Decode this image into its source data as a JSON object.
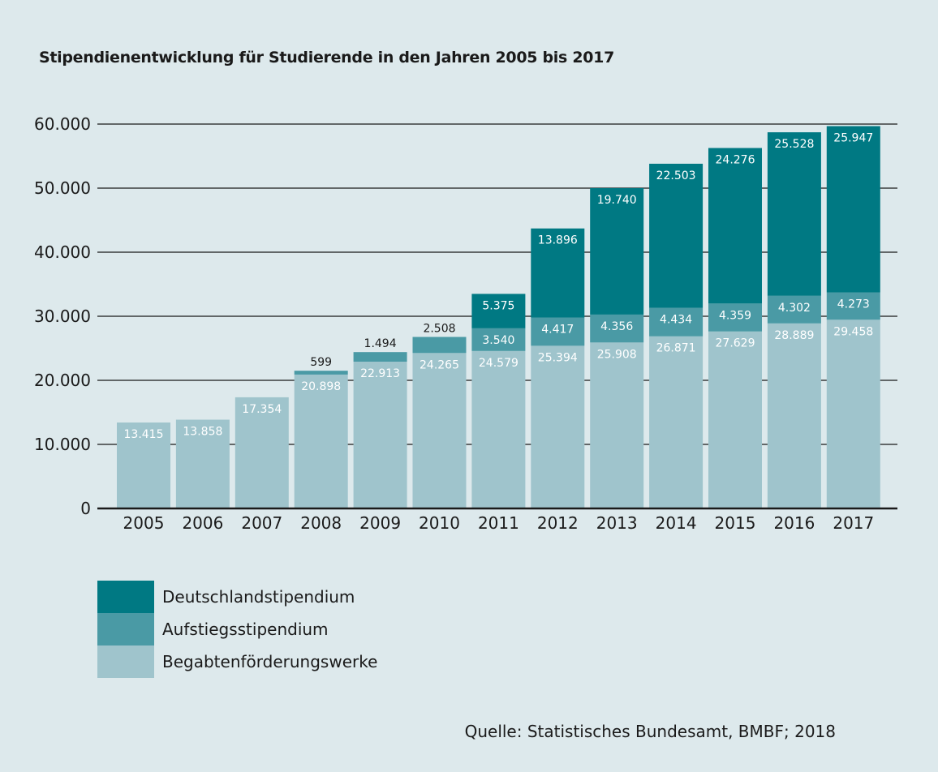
{
  "chart_data": {
    "type": "bar",
    "stacked": true,
    "title": "Stipendienentwicklung für Studierende in den Jahren 2005 bis 2017",
    "xlabel": "",
    "ylabel": "",
    "ylim": [
      0,
      60000
    ],
    "yticks": [
      0,
      10000,
      20000,
      30000,
      40000,
      50000,
      60000
    ],
    "ytick_labels": [
      "0",
      "10.000",
      "20.000",
      "30.000",
      "40.000",
      "50.000",
      "60.000"
    ],
    "grid": "horizontal",
    "legend_position": "bottom-left",
    "categories": [
      "2005",
      "2006",
      "2007",
      "2008",
      "2009",
      "2010",
      "2011",
      "2012",
      "2013",
      "2014",
      "2015",
      "2016",
      "2017"
    ],
    "series": [
      {
        "name": "Begabtenförderungswerke",
        "color": "#9fc4cc",
        "values": [
          13415,
          13858,
          17354,
          20898,
          22913,
          24265,
          24579,
          25394,
          25908,
          26871,
          27629,
          28889,
          29458
        ],
        "labels": [
          "13.415",
          "13.858",
          "17.354",
          "20.898",
          "22.913",
          "24.265",
          "24.579",
          "25.394",
          "25.908",
          "26.871",
          "27.629",
          "28.889",
          "29.458"
        ]
      },
      {
        "name": "Aufstiegsstipendium",
        "color": "#4a9aa5",
        "values": [
          null,
          null,
          null,
          599,
          1494,
          2508,
          3540,
          4417,
          4356,
          4434,
          4359,
          4302,
          4273
        ],
        "labels": [
          "",
          "",
          "",
          "599",
          "1.494",
          "2.508",
          "3.540",
          "4.417",
          "4.356",
          "4.434",
          "4.359",
          "4.302",
          "4.273"
        ]
      },
      {
        "name": "Deutschlandstipendium",
        "color": "#007983",
        "values": [
          null,
          null,
          null,
          null,
          null,
          null,
          5375,
          13896,
          19740,
          22503,
          24276,
          25528,
          25947
        ],
        "labels": [
          "",
          "",
          "",
          "",
          "",
          "",
          "5.375",
          "13.896",
          "19.740",
          "22.503",
          "24.276",
          "25.528",
          "25.947"
        ]
      }
    ]
  },
  "source": "Quelle: Statistisches Bundesamt, BMBF; 2018"
}
